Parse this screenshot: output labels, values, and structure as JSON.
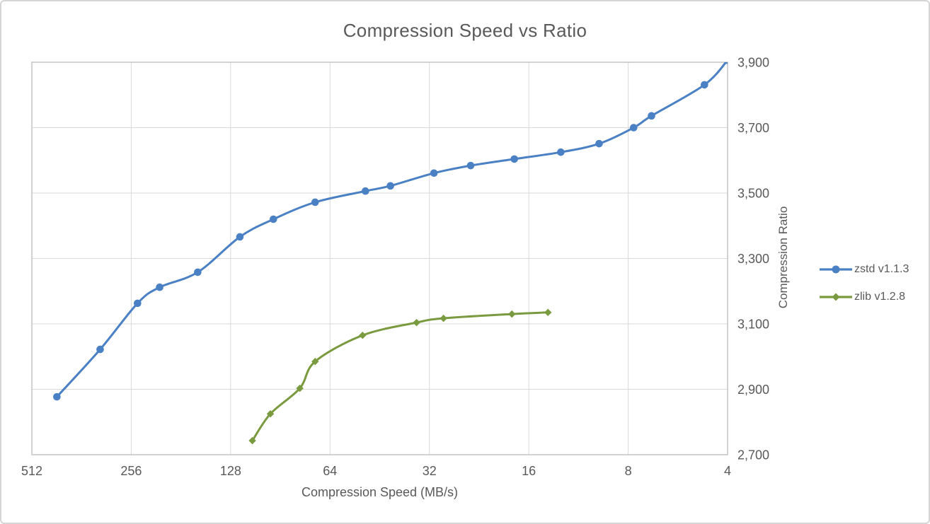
{
  "window": {
    "background": "#ffffff",
    "border_color": "#d5d5d5"
  },
  "colors": {
    "text": "#595959",
    "grid": "#d9d9d9",
    "plot_border": "#c4c4c4"
  },
  "chart_data": {
    "type": "line",
    "title": "Compression Speed vs Ratio",
    "xlabel": "Compression Speed (MB/s)",
    "ylabel": "Compression Ratio",
    "x_scale": "log2-reversed",
    "x_ticks": [
      512,
      256,
      128,
      64,
      32,
      16,
      8,
      4
    ],
    "x_range": [
      512,
      4
    ],
    "y_ticks": [
      2700,
      2900,
      3100,
      3300,
      3500,
      3700,
      3900
    ],
    "y_range": [
      2700,
      3900
    ],
    "y_tick_step": 200,
    "grid": true,
    "legend_position": "right",
    "y_axis_side": "right",
    "series": [
      {
        "name": "zstd v1.1.3",
        "color": "#4a80c4",
        "marker": "circle",
        "points": [
          [
            430,
            2877
          ],
          [
            318,
            3022
          ],
          [
            245,
            3163
          ],
          [
            210,
            3212
          ],
          [
            161,
            3258
          ],
          [
            120,
            3366
          ],
          [
            95,
            3420
          ],
          [
            71,
            3472
          ],
          [
            50,
            3506
          ],
          [
            42,
            3522
          ],
          [
            31,
            3561
          ],
          [
            24,
            3584
          ],
          [
            17.7,
            3604
          ],
          [
            12.8,
            3625
          ],
          [
            9.8,
            3651
          ],
          [
            7.7,
            3700
          ],
          [
            6.8,
            3736
          ],
          [
            4.7,
            3831
          ],
          [
            4.0,
            3906
          ]
        ]
      },
      {
        "name": "zlib v1.2.8",
        "color": "#7a9a40",
        "marker": "diamond",
        "points": [
          [
            110,
            2743
          ],
          [
            97,
            2825
          ],
          [
            79,
            2903
          ],
          [
            71,
            2985
          ],
          [
            51,
            3065
          ],
          [
            35,
            3104
          ],
          [
            29,
            3117
          ],
          [
            18,
            3130
          ],
          [
            14,
            3135
          ]
        ]
      }
    ]
  }
}
